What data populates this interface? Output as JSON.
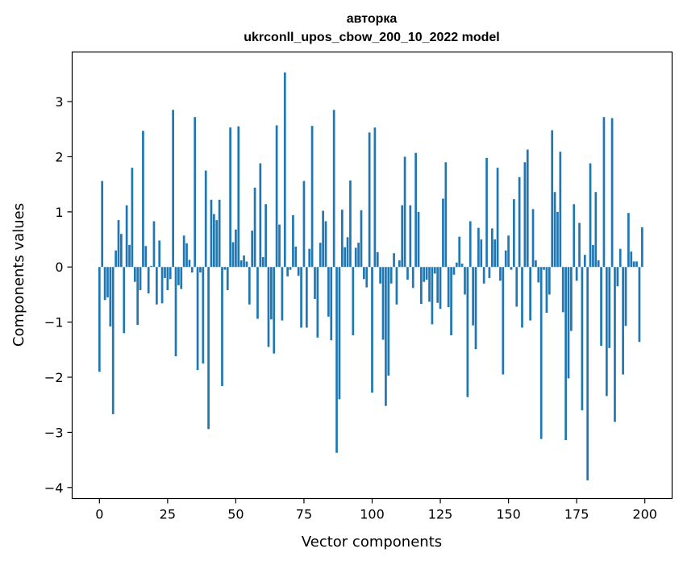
{
  "chart_data": {
    "type": "bar",
    "title": "авторка",
    "subtitle": "ukrconll_upos_cbow_200_10_2022 model",
    "xlabel": "Vector components",
    "ylabel": "Components values",
    "xlim": [
      -10,
      210
    ],
    "ylim": [
      -4.2,
      3.9
    ],
    "xticks": [
      0,
      25,
      50,
      75,
      100,
      125,
      150,
      175,
      200
    ],
    "yticks": [
      -4,
      -3,
      -2,
      -1,
      0,
      1,
      2,
      3
    ],
    "x_start": 0,
    "color": "#1f77b4",
    "values": [
      -1.9,
      1.56,
      -0.6,
      -0.55,
      -1.08,
      -2.67,
      0.3,
      0.85,
      0.6,
      -1.2,
      1.12,
      0.4,
      1.8,
      -0.27,
      -1.05,
      -0.42,
      2.47,
      0.38,
      -0.48,
      0.02,
      0.83,
      -0.68,
      0.48,
      -0.66,
      -0.2,
      -0.42,
      -0.22,
      2.85,
      -1.62,
      -0.33,
      -0.4,
      0.57,
      0.43,
      0.13,
      -0.1,
      2.72,
      -1.87,
      -0.1,
      -1.75,
      1.75,
      -2.94,
      1.22,
      0.96,
      0.85,
      1.22,
      -2.16,
      -0.05,
      -0.42,
      2.53,
      0.45,
      0.68,
      2.55,
      0.12,
      0.21,
      0.1,
      -0.68,
      0.66,
      1.44,
      -0.94,
      1.88,
      0.18,
      1.14,
      -1.45,
      -0.95,
      -1.57,
      2.57,
      0.77,
      -0.97,
      3.53,
      -0.17,
      -0.05,
      0.94,
      0.37,
      -0.16,
      -1.1,
      1.56,
      -1.1,
      0.33,
      2.56,
      -0.58,
      -1.28,
      0.44,
      1.02,
      0.83,
      -0.9,
      -1.33,
      2.85,
      -3.37,
      -2.4,
      1.04,
      0.36,
      0.54,
      1.57,
      -1.24,
      0.35,
      0.44,
      1.03,
      -0.22,
      -0.37,
      2.44,
      -2.28,
      2.53,
      0.27,
      -0.3,
      -1.32,
      -2.52,
      -1.97,
      -0.3,
      0.25,
      -0.68,
      0.12,
      1.12,
      2.0,
      -0.23,
      1.12,
      -0.38,
      2.07,
      1.0,
      -0.67,
      -0.27,
      -0.23,
      -0.63,
      -1.04,
      -0.12,
      -0.65,
      -0.76,
      1.24,
      1.9,
      -0.73,
      -1.24,
      -0.14,
      0.08,
      0.55,
      0.06,
      -0.5,
      -2.36,
      0.83,
      -1.06,
      -1.49,
      0.71,
      0.5,
      -0.3,
      1.98,
      -0.2,
      0.7,
      0.5,
      1.8,
      -0.25,
      -1.95,
      0.3,
      0.57,
      -0.05,
      1.23,
      -0.72,
      1.63,
      -1.1,
      1.9,
      2.13,
      -0.97,
      1.05,
      0.12,
      -0.28,
      -3.12,
      -0.05,
      -0.83,
      -0.5,
      2.48,
      1.36,
      1.0,
      2.09,
      -0.82,
      -3.14,
      -2.02,
      -1.16,
      1.14,
      -0.25,
      0.8,
      -2.6,
      0.22,
      -3.87,
      1.88,
      0.4,
      1.36,
      0.12,
      -1.43,
      2.72,
      -2.34,
      -1.47,
      2.7,
      -2.81,
      -0.35,
      0.33,
      -1.95,
      -1.07,
      0.98,
      0.28,
      0.1,
      0.1,
      -1.36,
      0.72
    ]
  }
}
